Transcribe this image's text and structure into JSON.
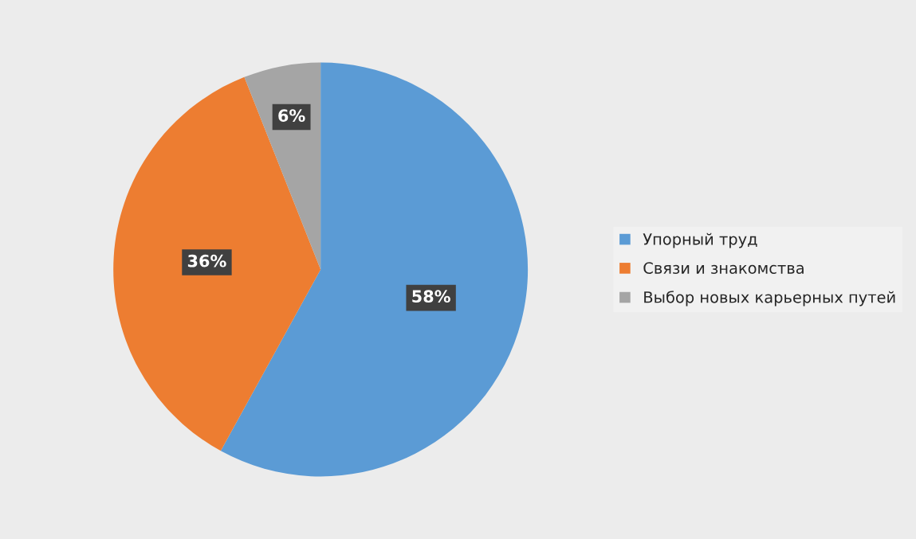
{
  "chart_data": {
    "type": "pie",
    "categories": [
      "Упорный труд",
      "Связи и знакомства",
      "Выбор новых карьерных путей"
    ],
    "values": [
      58,
      36,
      6
    ],
    "colors": [
      "#5b9bd5",
      "#ed7d31",
      "#a5a5a5"
    ],
    "value_labels": [
      "58%",
      "36%",
      "6%"
    ],
    "legend": "right"
  }
}
